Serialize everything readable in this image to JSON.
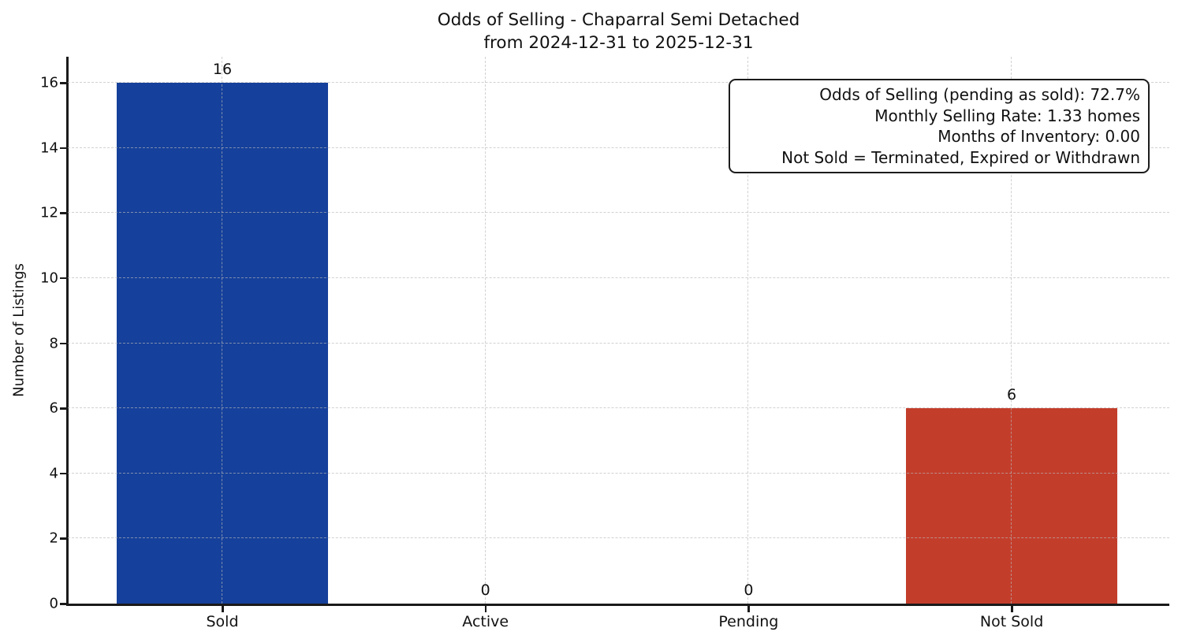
{
  "chart_data": {
    "type": "bar",
    "title": "Odds of Selling - Chaparral Semi Detached\nfrom 2024-12-31 to 2025-12-31",
    "title_lines": [
      "Odds of Selling - Chaparral Semi Detached",
      "from 2024-12-31 to 2025-12-31"
    ],
    "categories": [
      "Sold",
      "Active",
      "Pending",
      "Not Sold"
    ],
    "values": [
      16,
      0,
      0,
      6
    ],
    "value_labels": [
      "16",
      "0",
      "0",
      "6"
    ],
    "bar_colors": [
      "#15409B",
      "#15409B",
      "#15409B",
      "#C33D2B"
    ],
    "xlabel": "",
    "ylabel": "Number of Listings",
    "ylim": [
      0,
      16.8
    ],
    "yticks": [
      0,
      2,
      4,
      6,
      8,
      10,
      12,
      14,
      16
    ],
    "grid": true,
    "legend": "none",
    "annotation": {
      "lines": [
        "Odds of Selling (pending as sold): 72.7%",
        "Monthly Selling Rate: 1.33 homes",
        "Months of Inventory: 0.00",
        "Not Sold = Terminated, Expired or Withdrawn"
      ]
    }
  }
}
